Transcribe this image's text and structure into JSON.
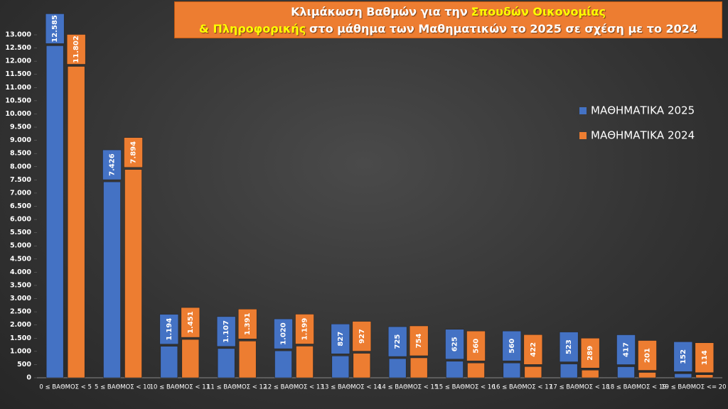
{
  "chart_data": {
    "type": "bar",
    "title_lines": [
      [
        {
          "text": "Κλιμάκωση Βαθμών για την"
        },
        {
          "text": "Σπουδών Οικονομίας",
          "highlight": true
        }
      ],
      [
        {
          "text": "& Πληροφορικής",
          "highlight": true
        },
        {
          "text": "στο μάθημα των Μαθηματικών το 2025 σε σχέση με το 2024"
        }
      ]
    ],
    "categories": [
      "0 ≤ ΒΑΘΜΟΣ < 5",
      "5 ≤ ΒΑΘΜΟΣ < 10",
      "10 ≤ ΒΑΘΜΟΣ < 11",
      "11 ≤ ΒΑΘΜΟΣ < 12",
      "12 ≤ ΒΑΘΜΟΣ < 13",
      "13 ≤ ΒΑΘΜΟΣ < 14",
      "14 ≤ ΒΑΘΜΟΣ < 15",
      "15 ≤ ΒΑΘΜΟΣ < 16",
      "16 ≤ ΒΑΘΜΟΣ < 17",
      "17 ≤ ΒΑΘΜΟΣ < 18",
      "18 ≤ ΒΑΘΜΟΣ < 19",
      "19 ≤ ΒΑΘΜΟΣ <= 20"
    ],
    "series": [
      {
        "name": "ΜΑΘΗΜΑΤΙΚΑ 2025",
        "color": "#4472c4",
        "values": [
          12585,
          7426,
          1194,
          1107,
          1020,
          827,
          725,
          625,
          560,
          523,
          417,
          152
        ],
        "value_labels": [
          "12.585",
          "7.426",
          "1.194",
          "1.107",
          "1.020",
          "827",
          "725",
          "625",
          "560",
          "523",
          "417",
          "152"
        ]
      },
      {
        "name": "ΜΑΘΗΜΑΤΙΚΑ 2024",
        "color": "#ed7d31",
        "values": [
          11802,
          7894,
          1451,
          1391,
          1199,
          927,
          754,
          560,
          422,
          289,
          201,
          114
        ],
        "value_labels": [
          "11.802",
          "7.894",
          "1.451",
          "1.391",
          "1.199",
          "927",
          "754",
          "560",
          "422",
          "289",
          "201",
          "114"
        ]
      }
    ],
    "ylim": [
      0,
      13000
    ],
    "yticks": [
      0,
      500,
      {
        "value": 1000,
        "label": "1.000"
      },
      {
        "value": 1500,
        "label": "1.500"
      },
      {
        "value": 2000,
        "label": "2.000"
      },
      {
        "value": 2500,
        "label": "2.500"
      },
      {
        "value": 3000,
        "label": "3.000"
      },
      {
        "value": 3500,
        "label": "3.500"
      },
      {
        "value": 4000,
        "label": "4.000"
      },
      {
        "value": 4500,
        "label": "4.500"
      },
      {
        "value": 5000,
        "label": "5.000"
      },
      {
        "value": 5500,
        "label": "5.500"
      },
      {
        "value": 6000,
        "label": "6.000"
      },
      {
        "value": 6500,
        "label": "6.500"
      },
      {
        "value": 7000,
        "label": "7.000"
      },
      {
        "value": 7500,
        "label": "7.500"
      },
      {
        "value": 8000,
        "label": "8.000"
      },
      {
        "value": 8500,
        "label": "8.500"
      },
      {
        "value": 9000,
        "label": "9.000"
      },
      {
        "value": 9500,
        "label": "9.500"
      },
      {
        "value": 10000,
        "label": "10.000"
      },
      {
        "value": 10500,
        "label": "10.500"
      },
      {
        "value": 11000,
        "label": "11.000"
      },
      {
        "value": 11500,
        "label": "11.500"
      },
      {
        "value": 12000,
        "label": "12.000"
      },
      {
        "value": 12500,
        "label": "12.500"
      },
      {
        "value": 13000,
        "label": "13.000"
      }
    ],
    "grid": false,
    "legend": "right"
  }
}
